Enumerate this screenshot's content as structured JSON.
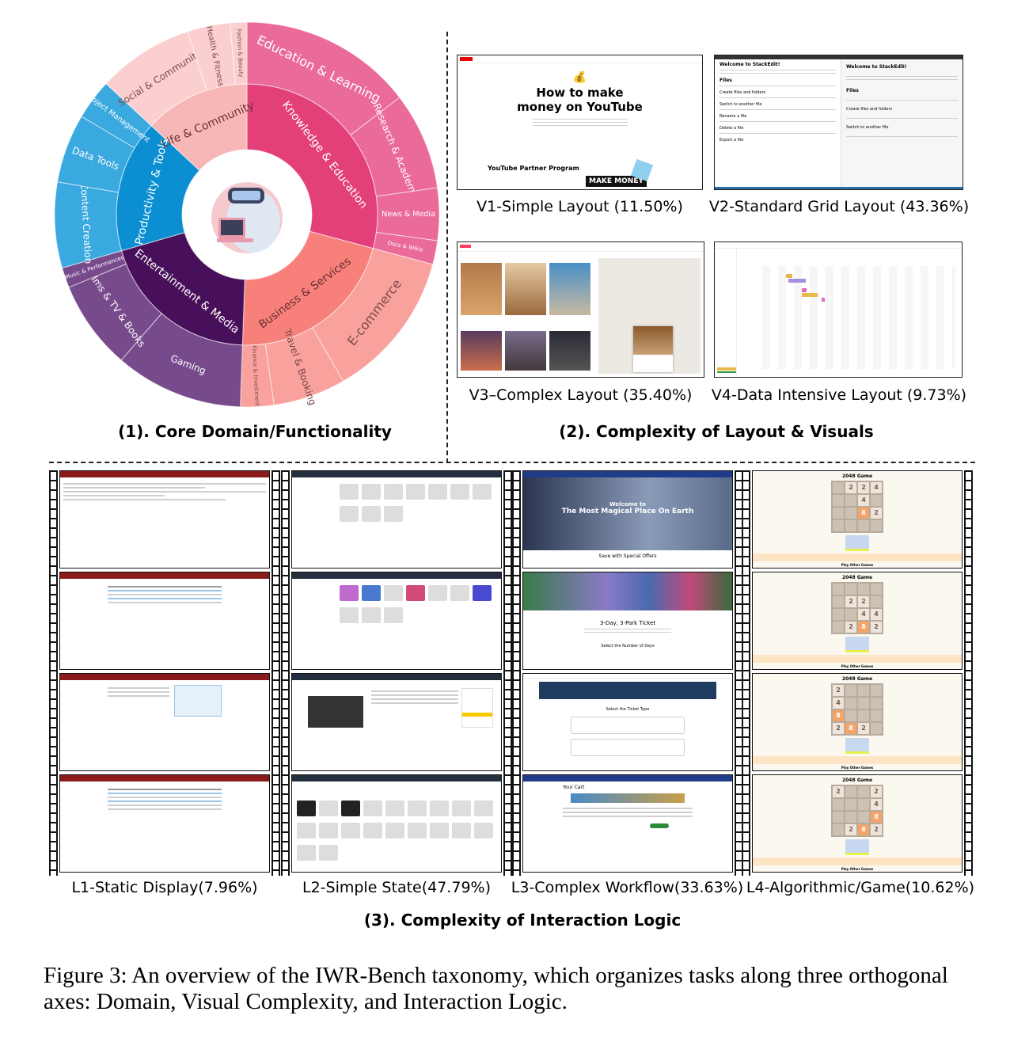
{
  "panel1": {
    "title": "(1). Core Domain/Functionality"
  },
  "chart_data": {
    "type": "sunburst",
    "title": "",
    "unit": "share of tasks (%), estimated from arc sizes",
    "categories": [
      {
        "name": "Knowledge & Education",
        "share": 29.2,
        "color": "#e33f79",
        "outer_color": "#ea6a99",
        "children": [
          {
            "name": "Education & Learning",
            "share": 14.6
          },
          {
            "name": "Research & Academia",
            "share": 8.2
          },
          {
            "name": "News & Media",
            "share": 4.4
          },
          {
            "name": "Docs & Wikis",
            "share": 2.0
          }
        ]
      },
      {
        "name": "Business & Services",
        "share": 21.4,
        "color": "#f7807b",
        "outer_color": "#f9a19c",
        "children": [
          {
            "name": "E-commerce",
            "share": 12.5
          },
          {
            "name": "Travel & Booking",
            "share": 6.1
          },
          {
            "name": "Finance & Investment",
            "share": 2.8
          }
        ]
      },
      {
        "name": "Entertainment & Media",
        "share": 20.0,
        "color": "#48105a",
        "outer_color": "#774a8c",
        "children": [
          {
            "name": "Gaming",
            "share": 10.8
          },
          {
            "name": "Films & TV & Books",
            "share": 7.5
          },
          {
            "name": "Music & Performances",
            "share": 1.7
          }
        ]
      },
      {
        "name": "Productivity & Tools",
        "share": 16.4,
        "color": "#0b8fd2",
        "outer_color": "#3aa9df",
        "children": [
          {
            "name": "Content Creation",
            "share": 7.2
          },
          {
            "name": "Data Tools",
            "share": 5.8
          },
          {
            "name": "Project Management",
            "share": 3.4
          }
        ]
      },
      {
        "name": "Life & Community",
        "share": 13.1,
        "color": "#f8b7b7",
        "outer_color": "#fbcfcf",
        "children": [
          {
            "name": "Social & Community",
            "share": 8.1
          },
          {
            "name": "Health & Fitness",
            "share": 3.6
          },
          {
            "name": "Fashion & Beauty",
            "share": 1.4
          }
        ]
      }
    ]
  },
  "panel2": {
    "title": "(2). Complexity of Layout & Visuals",
    "items": [
      {
        "caption": "V1-Simple Layout (11.50%)",
        "headline": "How to make money on YouTube",
        "section": "YouTube Partner Program",
        "banner": "MAKE MONEY"
      },
      {
        "caption": "V2-Standard Grid Layout (43.36%)",
        "headline": "Welcome to StackEdit!",
        "sections": [
          "Files",
          "Create files and folders",
          "Switch to another file",
          "Rename a file",
          "Delete a file",
          "Export a file"
        ]
      },
      {
        "caption": "V3–Complex Layout (35.40%)"
      },
      {
        "caption": "V4-Data Intensive Layout (9.73%)"
      }
    ]
  },
  "panel3": {
    "title": "(3). Complexity of Interaction Logic",
    "columns": [
      {
        "caption": "L1-Static Display(7.96%)"
      },
      {
        "caption": "L2-Simple State(47.79%)"
      },
      {
        "caption": "L3-Complex Workflow(33.63%)",
        "texts": {
          "welcome": "Welcome to",
          "hero": "The Most Magical Place On Earth",
          "offers": "Save with Special Offers",
          "ticket": "3-Day, 3-Park Ticket",
          "days": "Select the Number of Days",
          "type": "Select the Ticket Type",
          "cart": "Your Cart"
        }
      },
      {
        "caption": "L4-Algorithmic/Game(10.62%)",
        "game_title": "2048 Game",
        "other_games": "Play Other Games",
        "boards": [
          [
            [
              0,
              2,
              2,
              4
            ],
            [
              0,
              0,
              4,
              0
            ],
            [
              0,
              0,
              8,
              2
            ],
            [
              0,
              0,
              0,
              0
            ]
          ],
          [
            [
              0,
              0,
              0,
              0
            ],
            [
              0,
              2,
              2,
              0
            ],
            [
              0,
              0,
              4,
              4
            ],
            [
              0,
              2,
              8,
              2
            ]
          ],
          [
            [
              2,
              0,
              0,
              0
            ],
            [
              4,
              0,
              0,
              0
            ],
            [
              8,
              0,
              0,
              0
            ],
            [
              2,
              8,
              2,
              0
            ]
          ],
          [
            [
              2,
              0,
              0,
              2
            ],
            [
              0,
              0,
              0,
              4
            ],
            [
              0,
              0,
              0,
              8
            ],
            [
              0,
              2,
              8,
              2
            ]
          ]
        ]
      }
    ]
  },
  "figure_caption": "Figure 3: An overview of the IWR-Bench taxonomy, which organizes tasks along three orthogonal axes: Domain, Visual Complexity, and Interaction Logic."
}
